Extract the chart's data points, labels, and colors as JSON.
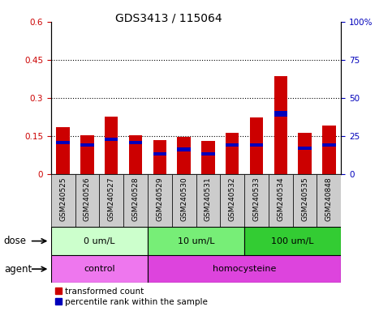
{
  "title": "GDS3413 / 115064",
  "samples": [
    "GSM240525",
    "GSM240526",
    "GSM240527",
    "GSM240528",
    "GSM240529",
    "GSM240530",
    "GSM240531",
    "GSM240532",
    "GSM240533",
    "GSM240534",
    "GSM240535",
    "GSM240848"
  ],
  "red_values": [
    0.185,
    0.153,
    0.228,
    0.153,
    0.135,
    0.148,
    0.132,
    0.163,
    0.222,
    0.385,
    0.163,
    0.192
  ],
  "blue_values": [
    0.014,
    0.014,
    0.014,
    0.014,
    0.014,
    0.014,
    0.014,
    0.014,
    0.014,
    0.022,
    0.014,
    0.014
  ],
  "blue_starts": [
    0.118,
    0.108,
    0.13,
    0.118,
    0.072,
    0.09,
    0.072,
    0.108,
    0.108,
    0.228,
    0.095,
    0.108
  ],
  "ylim_left": [
    0,
    0.6
  ],
  "ylim_right": [
    0,
    100
  ],
  "yticks_left": [
    0,
    0.15,
    0.3,
    0.45,
    0.6
  ],
  "yticks_right": [
    0,
    25,
    50,
    75,
    100
  ],
  "ytick_labels_left": [
    "0",
    "0.15",
    "0.3",
    "0.45",
    "0.6"
  ],
  "ytick_labels_right": [
    "0",
    "25",
    "50",
    "75",
    "100%"
  ],
  "hlines": [
    0.15,
    0.3,
    0.45
  ],
  "dose_groups": [
    {
      "label": "0 um/L",
      "start": 0,
      "end": 4,
      "color": "#ccffcc"
    },
    {
      "label": "10 um/L",
      "start": 4,
      "end": 8,
      "color": "#77ee77"
    },
    {
      "label": "100 um/L",
      "start": 8,
      "end": 12,
      "color": "#33cc33"
    }
  ],
  "agent_groups": [
    {
      "label": "control",
      "start": 0,
      "end": 4,
      "color": "#ee77ee"
    },
    {
      "label": "homocysteine",
      "start": 4,
      "end": 12,
      "color": "#dd44dd"
    }
  ],
  "bar_color_red": "#cc0000",
  "bar_color_blue": "#0000bb",
  "bar_width": 0.55,
  "legend_red": "transformed count",
  "legend_blue": "percentile rank within the sample",
  "xlabel_dose": "dose",
  "xlabel_agent": "agent",
  "tick_label_color_left": "#cc0000",
  "tick_label_color_right": "#0000bb",
  "title_fontsize": 10,
  "tick_label_fontsize": 7.5,
  "sample_label_fontsize": 6.5,
  "legend_fontsize": 7.5,
  "row_label_fontsize": 8.5,
  "group_label_fontsize": 8,
  "xtick_bg_color": "#cccccc"
}
